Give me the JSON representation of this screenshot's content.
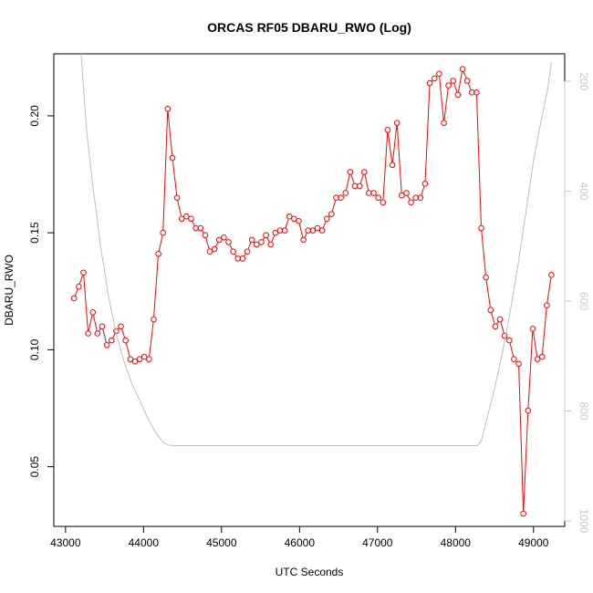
{
  "chart_data": {
    "type": "line",
    "title": "ORCAS RF05 DBARU_RWO (Log)",
    "xlabel": "UTC Seconds",
    "ylabel": "DBARU_RWO",
    "xlim": [
      42850,
      49400
    ],
    "ylim": [
      0.0245,
      0.2265
    ],
    "x_ticks": [
      43000,
      44000,
      45000,
      46000,
      47000,
      48000,
      49000
    ],
    "y_ticks": [
      0.05,
      0.1,
      0.15,
      0.2
    ],
    "y_tick_labels": [
      "0.05",
      "0.10",
      "0.15",
      "0.20"
    ],
    "y2_ticks": [
      200,
      400,
      600,
      800,
      1000
    ],
    "y2lim": [
      1010,
      150
    ],
    "grid": false,
    "series": [
      {
        "color": "#ff0000",
        "style": "points-and-lines",
        "x": [
          43110,
          43170,
          43230,
          43290,
          43350,
          43410,
          43470,
          43530,
          43590,
          43650,
          43710,
          43770,
          43830,
          43890,
          43950,
          44010,
          44070,
          44130,
          44190,
          44250,
          44310,
          44370,
          44430,
          44490,
          44550,
          44610,
          44670,
          44730,
          44790,
          44850,
          44910,
          44970,
          45030,
          45090,
          45150,
          45210,
          45270,
          45330,
          45390,
          45450,
          45510,
          45570,
          45630,
          45690,
          45750,
          45810,
          45870,
          45930,
          45990,
          46050,
          46110,
          46170,
          46230,
          46290,
          46350,
          46410,
          46470,
          46530,
          46590,
          46650,
          46710,
          46770,
          46830,
          46890,
          46950,
          47010,
          47070,
          47130,
          47190,
          47250,
          47310,
          47370,
          47430,
          47490,
          47550,
          47610,
          47670,
          47730,
          47790,
          47850,
          47910,
          47970,
          48030,
          48090,
          48150,
          48210,
          48270,
          48330,
          48390,
          48450,
          48510,
          48570,
          48630,
          48690,
          48750,
          48810,
          48870,
          48930,
          48990,
          49050,
          49110,
          49170,
          49230
        ],
        "y": [
          0.122,
          0.127,
          0.133,
          0.107,
          0.116,
          0.107,
          0.11,
          0.102,
          0.104,
          0.108,
          0.11,
          0.104,
          0.096,
          0.095,
          0.096,
          0.097,
          0.096,
          0.113,
          0.141,
          0.15,
          0.203,
          0.182,
          0.165,
          0.156,
          0.157,
          0.156,
          0.152,
          0.152,
          0.149,
          0.142,
          0.143,
          0.147,
          0.148,
          0.146,
          0.142,
          0.139,
          0.139,
          0.142,
          0.147,
          0.145,
          0.146,
          0.149,
          0.145,
          0.15,
          0.151,
          0.151,
          0.157,
          0.156,
          0.155,
          0.147,
          0.151,
          0.151,
          0.152,
          0.151,
          0.156,
          0.158,
          0.165,
          0.165,
          0.167,
          0.176,
          0.17,
          0.17,
          0.176,
          0.167,
          0.167,
          0.165,
          0.163,
          0.194,
          0.179,
          0.197,
          0.166,
          0.167,
          0.163,
          0.165,
          0.165,
          0.171,
          0.214,
          0.216,
          0.218,
          0.197,
          0.213,
          0.215,
          0.209,
          0.22,
          0.215,
          0.21,
          0.21,
          0.152,
          0.131,
          0.117,
          0.11,
          0.113,
          0.106,
          0.104,
          0.096,
          0.094,
          0.03,
          0.074,
          0.109,
          0.096,
          0.097,
          0.119,
          0.132
        ]
      },
      {
        "color": "#bebebe",
        "axis": "right",
        "style": "line",
        "x": [
          43200,
          43270,
          43350,
          43450,
          43550,
          43650,
          43750,
          43850,
          43950,
          44050,
          44150,
          44250,
          44310,
          44400,
          45000,
          46000,
          47000,
          48000,
          48280,
          48330,
          48400,
          48500,
          48600,
          48700,
          48800,
          48900,
          49000,
          49100,
          49180,
          49230
        ],
        "y": [
          150,
          290,
          390,
          500,
          590,
          660,
          710,
          750,
          780,
          812,
          838,
          857,
          862,
          863,
          863,
          863,
          863,
          863,
          863,
          855,
          815,
          760,
          695,
          620,
          535,
          440,
          345,
          270,
          215,
          165
        ]
      }
    ]
  }
}
